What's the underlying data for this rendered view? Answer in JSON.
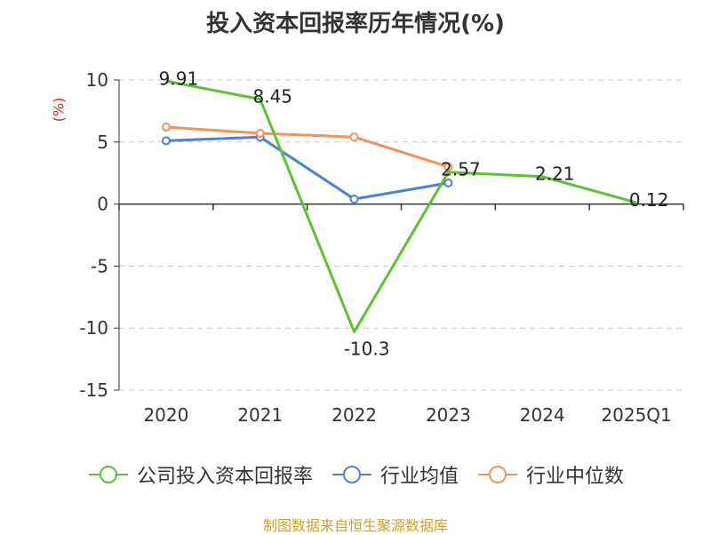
{
  "title": "投入资本回报率历年情况(%)",
  "unit_label": "(%)",
  "source": "制图数据来自恒生聚源数据库",
  "chart_data": {
    "type": "line",
    "title": "投入资本回报率历年情况(%)",
    "ylabel": "(%)",
    "xlabel": "",
    "categories": [
      "2020",
      "2021",
      "2022",
      "2023",
      "2024",
      "2025Q1"
    ],
    "ylim": [
      -15,
      10
    ],
    "yticks": [
      10,
      5,
      0,
      -5,
      -10,
      -15
    ],
    "grid": true,
    "legend_position": "bottom",
    "series": [
      {
        "name": "公司投入资本回报率",
        "color": "#5bc232",
        "values": [
          9.91,
          8.45,
          -10.3,
          2.57,
          2.21,
          0.12
        ],
        "labels": [
          "9.91",
          "8.45",
          "-10.3",
          "2.57",
          "2.21",
          "0.12"
        ],
        "markers": false
      },
      {
        "name": "行业均值",
        "color": "#4f7fdb",
        "values": [
          5.1,
          5.4,
          0.4,
          1.7,
          null,
          null
        ],
        "markers": true
      },
      {
        "name": "行业中位数",
        "color": "#f39159",
        "values": [
          6.2,
          5.7,
          5.4,
          3.0,
          null,
          null
        ],
        "markers": true
      }
    ]
  }
}
